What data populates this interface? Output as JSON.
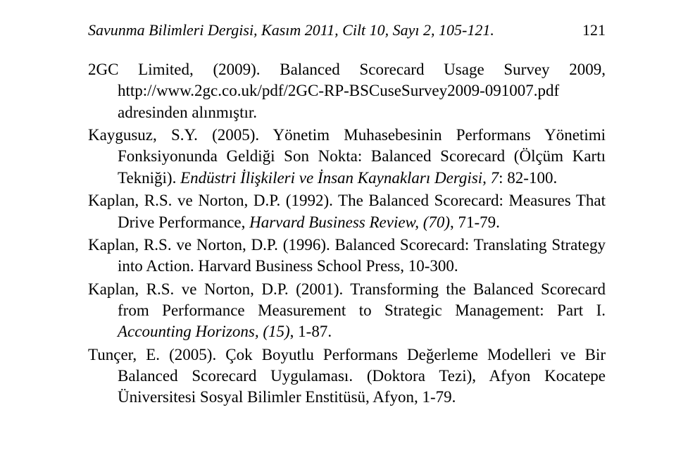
{
  "header": {
    "journal_line": "Savunma Bilimleri Dergisi, Kasım 2011, Cilt 10, Sayı 2, 105-121.",
    "page_number": "121"
  },
  "references": [
    {
      "segments": [
        {
          "text": "2GC Limited, (2009). Balanced Scorecard Usage Survey 2009, http://www.2gc.co.uk/pdf/2GC-RP-BSCuseSurvey2009-091007.pdf adresinden alınmıştır.",
          "italic": false
        }
      ]
    },
    {
      "segments": [
        {
          "text": "Kaygusuz, S.Y. (2005). Yönetim Muhasebesinin Performans Yönetimi Fonksiyonunda Geldiği Son Nokta: Balanced Scorecard (Ölçüm Kartı Tekniği). ",
          "italic": false
        },
        {
          "text": "Endüstri İlişkileri ve İnsan Kaynakları Dergisi, 7",
          "italic": true
        },
        {
          "text": ": 82-100.",
          "italic": false
        }
      ]
    },
    {
      "segments": [
        {
          "text": "Kaplan, R.S. ve Norton, D.P. (1992). The Balanced Scorecard: Measures That Drive Performance, ",
          "italic": false
        },
        {
          "text": "Harvard Business Review, (70)",
          "italic": true
        },
        {
          "text": ", 71-79.",
          "italic": false
        }
      ]
    },
    {
      "segments": [
        {
          "text": "Kaplan, R.S. ve Norton, D.P. (1996). Balanced Scorecard: Translating Strategy into Action. Harvard Business School Press, 10-300.",
          "italic": false
        }
      ]
    },
    {
      "segments": [
        {
          "text": "Kaplan, R.S. ve Norton, D.P. (2001). Transforming the Balanced Scorecard from Performance Measurement to Strategic Management: Part I. ",
          "italic": false
        },
        {
          "text": "Accounting Horizons, (15)",
          "italic": true
        },
        {
          "text": ", 1-87.",
          "italic": false
        }
      ]
    },
    {
      "segments": [
        {
          "text": "Tunçer, E. (2005). Çok Boyutlu Performans Değerleme Modelleri ve Bir Balanced Scorecard Uygulaması. (Doktora Tezi), Afyon Kocatepe Üniversitesi Sosyal Bilimler Enstitüsü, Afyon, 1-79.",
          "italic": false
        }
      ]
    }
  ]
}
